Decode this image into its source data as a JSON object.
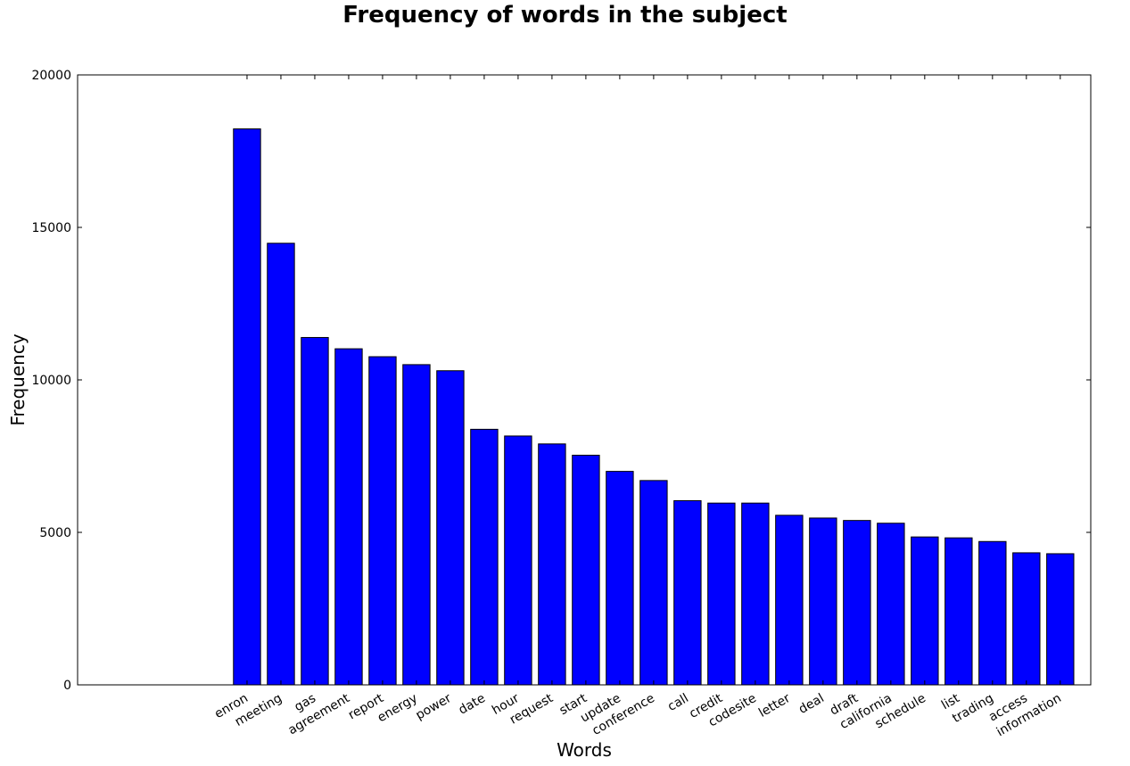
{
  "chart_data": {
    "type": "bar",
    "title": "Frequency of words in the subject",
    "xlabel": "Words",
    "ylabel": "Frequency",
    "ylim": [
      0,
      20000
    ],
    "yticks": [
      "0",
      "5000",
      "10000",
      "15000",
      "20000"
    ],
    "xlim": [
      -4.6,
      25.3
    ],
    "grid": false,
    "bar_color": "#0000ff",
    "categories": [
      "enron",
      "meeting",
      "gas",
      "agreement",
      "report",
      "energy",
      "power",
      "date",
      "hour",
      "request",
      "start",
      "update",
      "conference",
      "call",
      "credit",
      "codesite",
      "letter",
      "deal",
      "draft",
      "california",
      "schedule",
      "list",
      "trading",
      "access",
      "information"
    ],
    "values": [
      18230,
      14480,
      11390,
      11020,
      10760,
      10500,
      10300,
      8380,
      8160,
      7900,
      7530,
      7000,
      6700,
      6040,
      5960,
      5960,
      5560,
      5470,
      5390,
      5300,
      4850,
      4820,
      4700,
      4330,
      4300
    ]
  }
}
